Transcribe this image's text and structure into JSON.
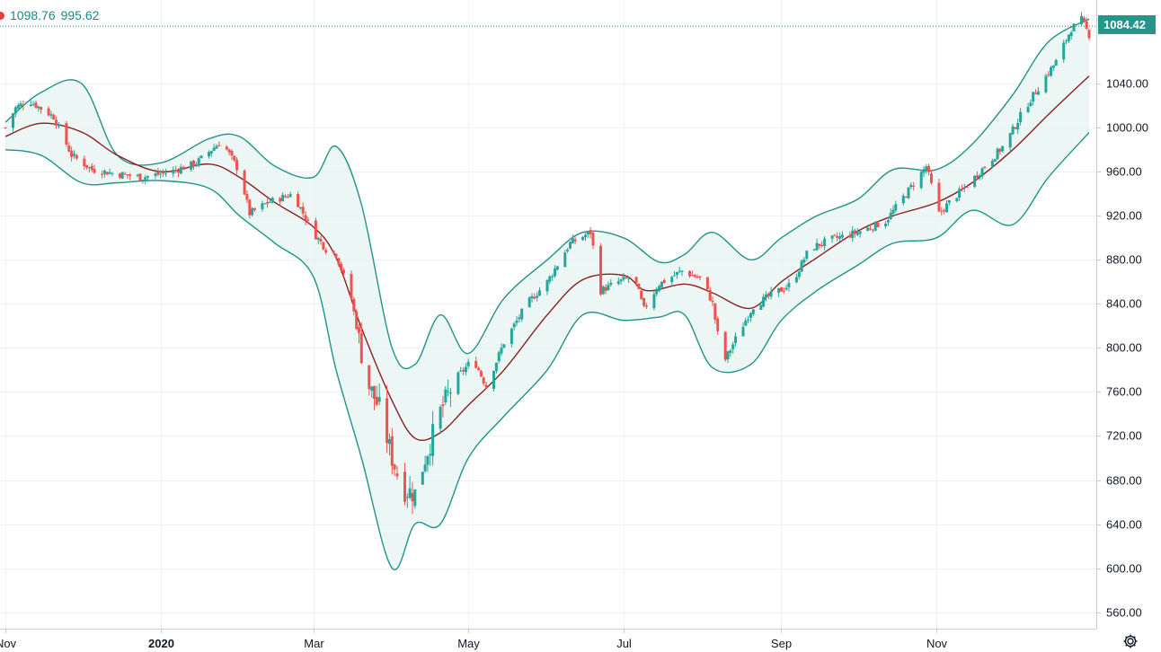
{
  "legend": {
    "upper": "1098.76",
    "lower": "995.62"
  },
  "last_price": "1084.42",
  "icons": {
    "settings": "gear-icon",
    "legend_marker": "red-dot-icon"
  },
  "colors": {
    "up": "#26a69a",
    "down": "#ef5350",
    "band": "#1f9488",
    "basis": "#8b1f1f",
    "band_fill": "#e6f4f3",
    "grid": "#eef0f3"
  },
  "chart_data": {
    "type": "candlestick",
    "indicator": "Bollinger Bands",
    "ylim": [
      545,
      1116
    ],
    "y_ticks": [
      "560.00",
      "600.00",
      "640.00",
      "680.00",
      "720.00",
      "760.00",
      "800.00",
      "840.00",
      "880.00",
      "920.00",
      "960.00",
      "1000.00",
      "1040.00"
    ],
    "x_ticks": [
      "Nov",
      "2020",
      "Mar",
      "May",
      "Jul",
      "Sep",
      "Nov"
    ],
    "x_tick_dates": [
      "2019-11-01",
      "2020-01-01",
      "2020-03-01",
      "2020-05-01",
      "2020-07-01",
      "2020-09-01",
      "2020-11-01"
    ],
    "x_range": [
      "2019-11-01",
      "2020-12-31"
    ],
    "last_price": 1084.42,
    "upper_band_last": 1098.76,
    "lower_band_last": 995.62,
    "basis": [
      [
        "2019-11-01",
        992
      ],
      [
        "2019-11-15",
        1004
      ],
      [
        "2019-12-01",
        996
      ],
      [
        "2019-12-15",
        975
      ],
      [
        "2020-01-01",
        960
      ],
      [
        "2020-01-20",
        967
      ],
      [
        "2020-02-01",
        955
      ],
      [
        "2020-02-15",
        932
      ],
      [
        "2020-03-01",
        910
      ],
      [
        "2020-03-10",
        882
      ],
      [
        "2020-03-20",
        818
      ],
      [
        "2020-04-01",
        752
      ],
      [
        "2020-04-10",
        718
      ],
      [
        "2020-04-20",
        723
      ],
      [
        "2020-05-01",
        748
      ],
      [
        "2020-05-15",
        780
      ],
      [
        "2020-06-01",
        830
      ],
      [
        "2020-06-15",
        862
      ],
      [
        "2020-07-01",
        866
      ],
      [
        "2020-07-10",
        852
      ],
      [
        "2020-07-25",
        858
      ],
      [
        "2020-08-05",
        850
      ],
      [
        "2020-08-20",
        836
      ],
      [
        "2020-09-01",
        860
      ],
      [
        "2020-09-15",
        882
      ],
      [
        "2020-10-01",
        906
      ],
      [
        "2020-10-15",
        920
      ],
      [
        "2020-11-01",
        932
      ],
      [
        "2020-11-15",
        950
      ],
      [
        "2020-12-01",
        980
      ],
      [
        "2020-12-15",
        1012
      ],
      [
        "2020-12-31",
        1047
      ]
    ],
    "upper": [
      [
        "2019-11-01",
        1005
      ],
      [
        "2019-11-15",
        1032
      ],
      [
        "2019-12-01",
        1040
      ],
      [
        "2019-12-15",
        975
      ],
      [
        "2020-01-01",
        968
      ],
      [
        "2020-01-20",
        990
      ],
      [
        "2020-02-01",
        992
      ],
      [
        "2020-02-15",
        965
      ],
      [
        "2020-03-01",
        955
      ],
      [
        "2020-03-10",
        983
      ],
      [
        "2020-03-20",
        930
      ],
      [
        "2020-04-01",
        800
      ],
      [
        "2020-04-10",
        785
      ],
      [
        "2020-04-20",
        830
      ],
      [
        "2020-05-01",
        795
      ],
      [
        "2020-05-15",
        845
      ],
      [
        "2020-06-01",
        880
      ],
      [
        "2020-06-15",
        905
      ],
      [
        "2020-07-01",
        900
      ],
      [
        "2020-07-15",
        878
      ],
      [
        "2020-07-25",
        885
      ],
      [
        "2020-08-05",
        905
      ],
      [
        "2020-08-20",
        880
      ],
      [
        "2020-09-01",
        900
      ],
      [
        "2020-09-15",
        920
      ],
      [
        "2020-10-01",
        935
      ],
      [
        "2020-10-15",
        962
      ],
      [
        "2020-11-01",
        962
      ],
      [
        "2020-11-15",
        985
      ],
      [
        "2020-12-01",
        1030
      ],
      [
        "2020-12-15",
        1078
      ],
      [
        "2020-12-31",
        1098.76
      ]
    ],
    "lower": [
      [
        "2019-11-01",
        980
      ],
      [
        "2019-11-15",
        975
      ],
      [
        "2019-12-01",
        950
      ],
      [
        "2019-12-15",
        950
      ],
      [
        "2020-01-01",
        952
      ],
      [
        "2020-01-20",
        945
      ],
      [
        "2020-02-01",
        920
      ],
      [
        "2020-02-15",
        895
      ],
      [
        "2020-03-01",
        865
      ],
      [
        "2020-03-10",
        780
      ],
      [
        "2020-03-20",
        700
      ],
      [
        "2020-04-01",
        600
      ],
      [
        "2020-04-10",
        640
      ],
      [
        "2020-04-20",
        640
      ],
      [
        "2020-05-01",
        700
      ],
      [
        "2020-05-15",
        738
      ],
      [
        "2020-06-01",
        780
      ],
      [
        "2020-06-15",
        830
      ],
      [
        "2020-07-01",
        825
      ],
      [
        "2020-07-15",
        828
      ],
      [
        "2020-07-25",
        830
      ],
      [
        "2020-08-05",
        782
      ],
      [
        "2020-08-20",
        785
      ],
      [
        "2020-09-01",
        825
      ],
      [
        "2020-09-15",
        852
      ],
      [
        "2020-10-01",
        875
      ],
      [
        "2020-10-15",
        895
      ],
      [
        "2020-11-01",
        900
      ],
      [
        "2020-11-15",
        925
      ],
      [
        "2020-12-01",
        912
      ],
      [
        "2020-12-15",
        955
      ],
      [
        "2020-12-31",
        995.62
      ]
    ],
    "close_path": [
      [
        "2019-11-01",
        1000
      ],
      [
        "2019-11-05",
        1018
      ],
      [
        "2019-11-10",
        1025
      ],
      [
        "2019-11-20",
        1010
      ],
      [
        "2019-11-27",
        975
      ],
      [
        "2019-12-05",
        962
      ],
      [
        "2019-12-15",
        958
      ],
      [
        "2019-12-25",
        955
      ],
      [
        "2020-01-05",
        960
      ],
      [
        "2020-01-15",
        968
      ],
      [
        "2020-01-25",
        988
      ],
      [
        "2020-02-01",
        960
      ],
      [
        "2020-02-05",
        922
      ],
      [
        "2020-02-12",
        932
      ],
      [
        "2020-02-22",
        940
      ],
      [
        "2020-03-01",
        905
      ],
      [
        "2020-03-06",
        890
      ],
      [
        "2020-03-10",
        885
      ],
      [
        "2020-03-16",
        845
      ],
      [
        "2020-03-22",
        770
      ],
      [
        "2020-03-27",
        745
      ],
      [
        "2020-04-01",
        700
      ],
      [
        "2020-04-05",
        672
      ],
      [
        "2020-04-10",
        668
      ],
      [
        "2020-04-14",
        700
      ],
      [
        "2020-04-20",
        742
      ],
      [
        "2020-04-26",
        772
      ],
      [
        "2020-05-03",
        790
      ],
      [
        "2020-05-08",
        765
      ],
      [
        "2020-05-15",
        805
      ],
      [
        "2020-05-24",
        840
      ],
      [
        "2020-06-01",
        860
      ],
      [
        "2020-06-10",
        895
      ],
      [
        "2020-06-18",
        905
      ],
      [
        "2020-06-22",
        852
      ],
      [
        "2020-06-29",
        860
      ],
      [
        "2020-07-05",
        865
      ],
      [
        "2020-07-09",
        835
      ],
      [
        "2020-07-15",
        858
      ],
      [
        "2020-07-24",
        870
      ],
      [
        "2020-08-01",
        862
      ],
      [
        "2020-08-05",
        840
      ],
      [
        "2020-08-09",
        785
      ],
      [
        "2020-08-14",
        808
      ],
      [
        "2020-08-21",
        838
      ],
      [
        "2020-08-28",
        848
      ],
      [
        "2020-09-05",
        858
      ],
      [
        "2020-09-12",
        890
      ],
      [
        "2020-09-20",
        898
      ],
      [
        "2020-10-01",
        905
      ],
      [
        "2020-10-12",
        915
      ],
      [
        "2020-10-20",
        940
      ],
      [
        "2020-10-28",
        965
      ],
      [
        "2020-11-02",
        922
      ],
      [
        "2020-11-06",
        932
      ],
      [
        "2020-11-14",
        950
      ],
      [
        "2020-11-20",
        965
      ],
      [
        "2020-11-28",
        985
      ],
      [
        "2020-12-05",
        1015
      ],
      [
        "2020-12-12",
        1040
      ],
      [
        "2020-12-18",
        1060
      ],
      [
        "2020-12-24",
        1090
      ],
      [
        "2020-12-28",
        1098
      ],
      [
        "2020-12-31",
        1084.42
      ]
    ]
  }
}
